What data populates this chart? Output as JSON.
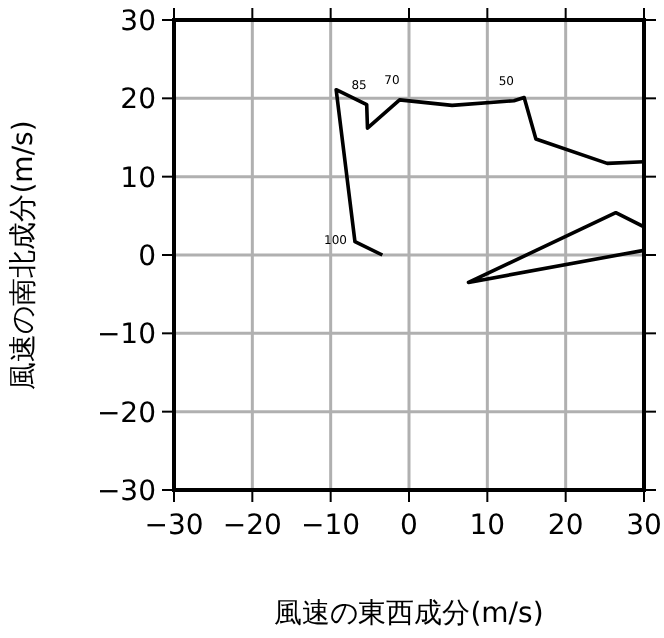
{
  "chart_data": {
    "type": "line",
    "xlabel": "風速の東西成分(m/s)",
    "ylabel": "風速の南北成分(m/s)",
    "x": [
      -3.4,
      -6.9,
      -9.3,
      -5.4,
      -5.3,
      -1.2,
      5.5,
      13.4,
      14.7,
      16.2,
      25.3,
      30,
      null,
      30,
      26.4,
      7.6,
      30
    ],
    "series": [
      {
        "color": "#000000",
        "values": [
          0,
          1.7,
          21.1,
          19.2,
          16.2,
          19.8,
          19.1,
          19.7,
          20.1,
          14.8,
          11.7,
          11.9,
          null,
          3.6,
          5.4,
          -3.5,
          0.6
        ]
      }
    ],
    "xlim": [
      -30,
      30
    ],
    "ylim": [
      -30,
      30
    ],
    "xticks": [
      -30,
      -20,
      -10,
      0,
      10,
      20,
      30
    ],
    "yticks": [
      -30,
      -20,
      -10,
      0,
      10,
      20,
      30
    ],
    "grid": true,
    "marker": "none",
    "line_style": "solid",
    "annotations": [
      {
        "text": "100",
        "x": -6.9,
        "y": 1.7
      },
      {
        "text": "85",
        "x": -5.4,
        "y": 19.2
      },
      {
        "text": "70",
        "x": -1.2,
        "y": 19.8
      },
      {
        "text": "50",
        "x": 13.4,
        "y": 19.7
      }
    ]
  }
}
